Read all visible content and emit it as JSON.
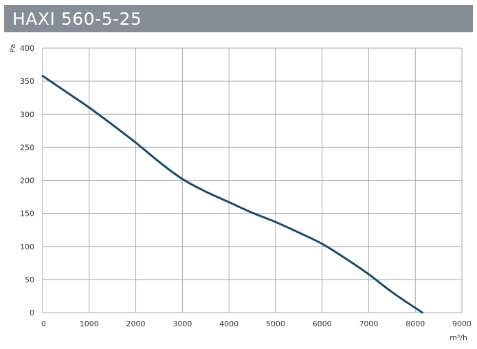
{
  "header": {
    "title": "HAXI 560-5-25",
    "background_color": "#858d96",
    "text_color": "#ffffff"
  },
  "chart_data": {
    "type": "line",
    "title": "HAXI 560-5-25",
    "xlabel": "m³/h",
    "ylabel": "Pa",
    "xlim": [
      0,
      9000
    ],
    "ylim": [
      0,
      400
    ],
    "xticks": [
      0,
      1000,
      2000,
      3000,
      4000,
      5000,
      6000,
      7000,
      8000,
      9000
    ],
    "yticks": [
      0,
      50,
      100,
      150,
      200,
      250,
      300,
      350,
      400
    ],
    "grid": true,
    "legend": "none",
    "line_color": "#184b6a",
    "grid_color": "#a9a9a9",
    "series": [
      {
        "x": [
          0,
          500,
          1000,
          1500,
          2000,
          2500,
          3000,
          3500,
          4000,
          4500,
          5000,
          5500,
          6000,
          6500,
          7000,
          7500,
          8150
        ],
        "values": [
          358,
          334,
          310,
          284,
          257,
          228,
          202,
          183,
          167,
          151,
          137,
          121,
          104,
          82,
          58,
          31,
          0
        ]
      }
    ]
  }
}
